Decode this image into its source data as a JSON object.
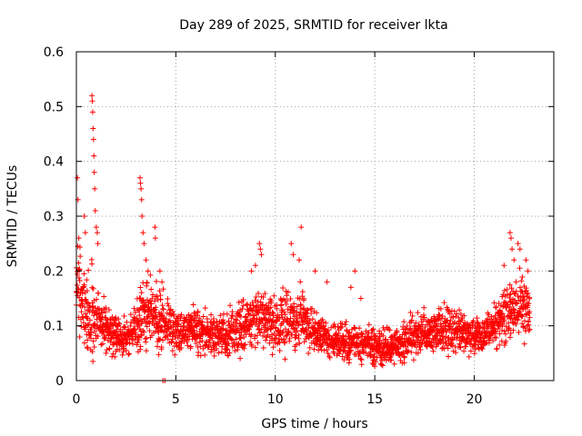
{
  "chart_data": {
    "type": "scatter",
    "title": "Day 289 of 2025, SRMTID for receiver lkta",
    "xlabel": "GPS time / hours",
    "ylabel": "SRMTID / TECUs",
    "xlim": [
      0,
      24
    ],
    "ylim": [
      0,
      0.6
    ],
    "x_ticks": [
      0,
      5,
      10,
      15,
      20
    ],
    "x_tick_labels": [
      "0",
      "5",
      "10",
      "15",
      "20"
    ],
    "y_ticks": [
      0,
      0.1,
      0.2,
      0.3,
      0.4,
      0.5,
      0.6
    ],
    "y_tick_labels": [
      "0",
      "0.1",
      "0.2",
      "0.3",
      "0.4",
      "0.5",
      "0.6"
    ],
    "grid": true,
    "marker": "+",
    "color": "#ff0000",
    "envelope": {
      "x": [
        0,
        0.2,
        0.5,
        0.8,
        1.0,
        1.3,
        2.0,
        2.7,
        3.1,
        3.4,
        3.8,
        4.2,
        4.6,
        5.0,
        6.0,
        7.0,
        8.0,
        8.5,
        9.2,
        9.6,
        10.0,
        10.5,
        11.0,
        11.3,
        11.8,
        12.5,
        13.5,
        14.5,
        15.5,
        16.0,
        17.0,
        18.0,
        19.0,
        20.0,
        20.8,
        21.3,
        21.8,
        22.2,
        22.5,
        22.8
      ],
      "center": [
        0.18,
        0.17,
        0.12,
        0.14,
        0.12,
        0.1,
        0.08,
        0.08,
        0.1,
        0.13,
        0.12,
        0.11,
        0.1,
        0.09,
        0.09,
        0.08,
        0.09,
        0.1,
        0.12,
        0.11,
        0.1,
        0.11,
        0.1,
        0.12,
        0.09,
        0.08,
        0.07,
        0.07,
        0.06,
        0.06,
        0.08,
        0.09,
        0.09,
        0.08,
        0.09,
        0.11,
        0.13,
        0.14,
        0.13,
        0.12
      ],
      "spread": [
        0.07,
        0.07,
        0.06,
        0.08,
        0.06,
        0.04,
        0.03,
        0.03,
        0.04,
        0.06,
        0.05,
        0.05,
        0.04,
        0.035,
        0.035,
        0.03,
        0.035,
        0.04,
        0.05,
        0.05,
        0.04,
        0.05,
        0.04,
        0.05,
        0.035,
        0.03,
        0.03,
        0.03,
        0.03,
        0.03,
        0.035,
        0.035,
        0.035,
        0.03,
        0.035,
        0.04,
        0.05,
        0.05,
        0.05,
        0.05
      ]
    },
    "peaks": [
      {
        "x": 0.05,
        "y": 0.37
      },
      {
        "x": 0.08,
        "y": 0.33
      },
      {
        "x": 0.12,
        "y": 0.26
      },
      {
        "x": 0.4,
        "y": 0.3
      },
      {
        "x": 0.45,
        "y": 0.27
      },
      {
        "x": 0.78,
        "y": 0.52
      },
      {
        "x": 0.8,
        "y": 0.51
      },
      {
        "x": 0.82,
        "y": 0.49
      },
      {
        "x": 0.84,
        "y": 0.46
      },
      {
        "x": 0.86,
        "y": 0.44
      },
      {
        "x": 0.88,
        "y": 0.41
      },
      {
        "x": 0.9,
        "y": 0.38
      },
      {
        "x": 0.92,
        "y": 0.35
      },
      {
        "x": 0.95,
        "y": 0.31
      },
      {
        "x": 1.0,
        "y": 0.28
      },
      {
        "x": 1.05,
        "y": 0.27
      },
      {
        "x": 1.08,
        "y": 0.25
      },
      {
        "x": 3.2,
        "y": 0.37
      },
      {
        "x": 3.22,
        "y": 0.36
      },
      {
        "x": 3.25,
        "y": 0.35
      },
      {
        "x": 3.28,
        "y": 0.33
      },
      {
        "x": 3.3,
        "y": 0.3
      },
      {
        "x": 3.35,
        "y": 0.27
      },
      {
        "x": 3.4,
        "y": 0.25
      },
      {
        "x": 3.5,
        "y": 0.22
      },
      {
        "x": 3.6,
        "y": 0.2
      },
      {
        "x": 3.95,
        "y": 0.28
      },
      {
        "x": 3.97,
        "y": 0.26
      },
      {
        "x": 4.2,
        "y": 0.2
      },
      {
        "x": 4.3,
        "y": 0.18
      },
      {
        "x": 4.35,
        "y": 0.0
      },
      {
        "x": 4.45,
        "y": 0.0
      },
      {
        "x": 9.2,
        "y": 0.25
      },
      {
        "x": 9.25,
        "y": 0.24
      },
      {
        "x": 9.3,
        "y": 0.23
      },
      {
        "x": 9.0,
        "y": 0.21
      },
      {
        "x": 8.8,
        "y": 0.2
      },
      {
        "x": 10.8,
        "y": 0.25
      },
      {
        "x": 10.9,
        "y": 0.23
      },
      {
        "x": 11.3,
        "y": 0.28
      },
      {
        "x": 11.2,
        "y": 0.22
      },
      {
        "x": 12.0,
        "y": 0.2
      },
      {
        "x": 12.6,
        "y": 0.18
      },
      {
        "x": 13.8,
        "y": 0.17
      },
      {
        "x": 14.0,
        "y": 0.2
      },
      {
        "x": 14.3,
        "y": 0.15
      },
      {
        "x": 21.8,
        "y": 0.27
      },
      {
        "x": 21.85,
        "y": 0.26
      },
      {
        "x": 21.9,
        "y": 0.24
      },
      {
        "x": 22.2,
        "y": 0.25
      },
      {
        "x": 22.3,
        "y": 0.24
      },
      {
        "x": 22.6,
        "y": 0.22
      },
      {
        "x": 22.7,
        "y": 0.2
      },
      {
        "x": 21.5,
        "y": 0.21
      },
      {
        "x": 22.0,
        "y": 0.22
      }
    ]
  }
}
